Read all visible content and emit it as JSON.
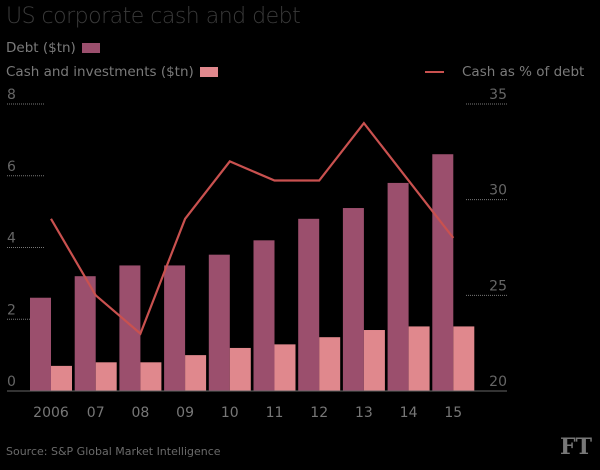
{
  "chart_data": {
    "type": "bar",
    "title": "US corporate cash and debt",
    "categories": [
      "2006",
      "07",
      "08",
      "09",
      "10",
      "11",
      "12",
      "13",
      "14",
      "15"
    ],
    "series": [
      {
        "name": "Debt ($tn)",
        "type": "bar",
        "axis": "left",
        "color": "#9b4f6d",
        "values": [
          2.6,
          3.2,
          3.5,
          3.5,
          3.8,
          4.2,
          4.8,
          5.1,
          5.8,
          6.6
        ]
      },
      {
        "name": "Cash and investments ($tn)",
        "type": "bar",
        "axis": "left",
        "color": "#e0888d",
        "values": [
          0.7,
          0.8,
          0.8,
          1.0,
          1.2,
          1.3,
          1.5,
          1.7,
          1.8,
          1.8
        ]
      },
      {
        "name": "Cash as % of debt",
        "type": "line",
        "axis": "right",
        "color": "#c9514f",
        "values": [
          29,
          25,
          23,
          29,
          32,
          31,
          31,
          34,
          31,
          28
        ]
      }
    ],
    "left_axis": {
      "ylim": [
        0,
        8
      ],
      "ticks": [
        "0",
        "2",
        "4",
        "6",
        "8"
      ]
    },
    "right_axis": {
      "ylim": [
        20,
        35
      ],
      "ticks": [
        "20",
        "25",
        "30",
        "35"
      ]
    },
    "grid": "dotted short gridlines at axes",
    "legend_placement": "top"
  },
  "source": "Source: S&P Global Market Intelligence",
  "logo": "FT",
  "colors": {
    "background": "#000000"
  }
}
